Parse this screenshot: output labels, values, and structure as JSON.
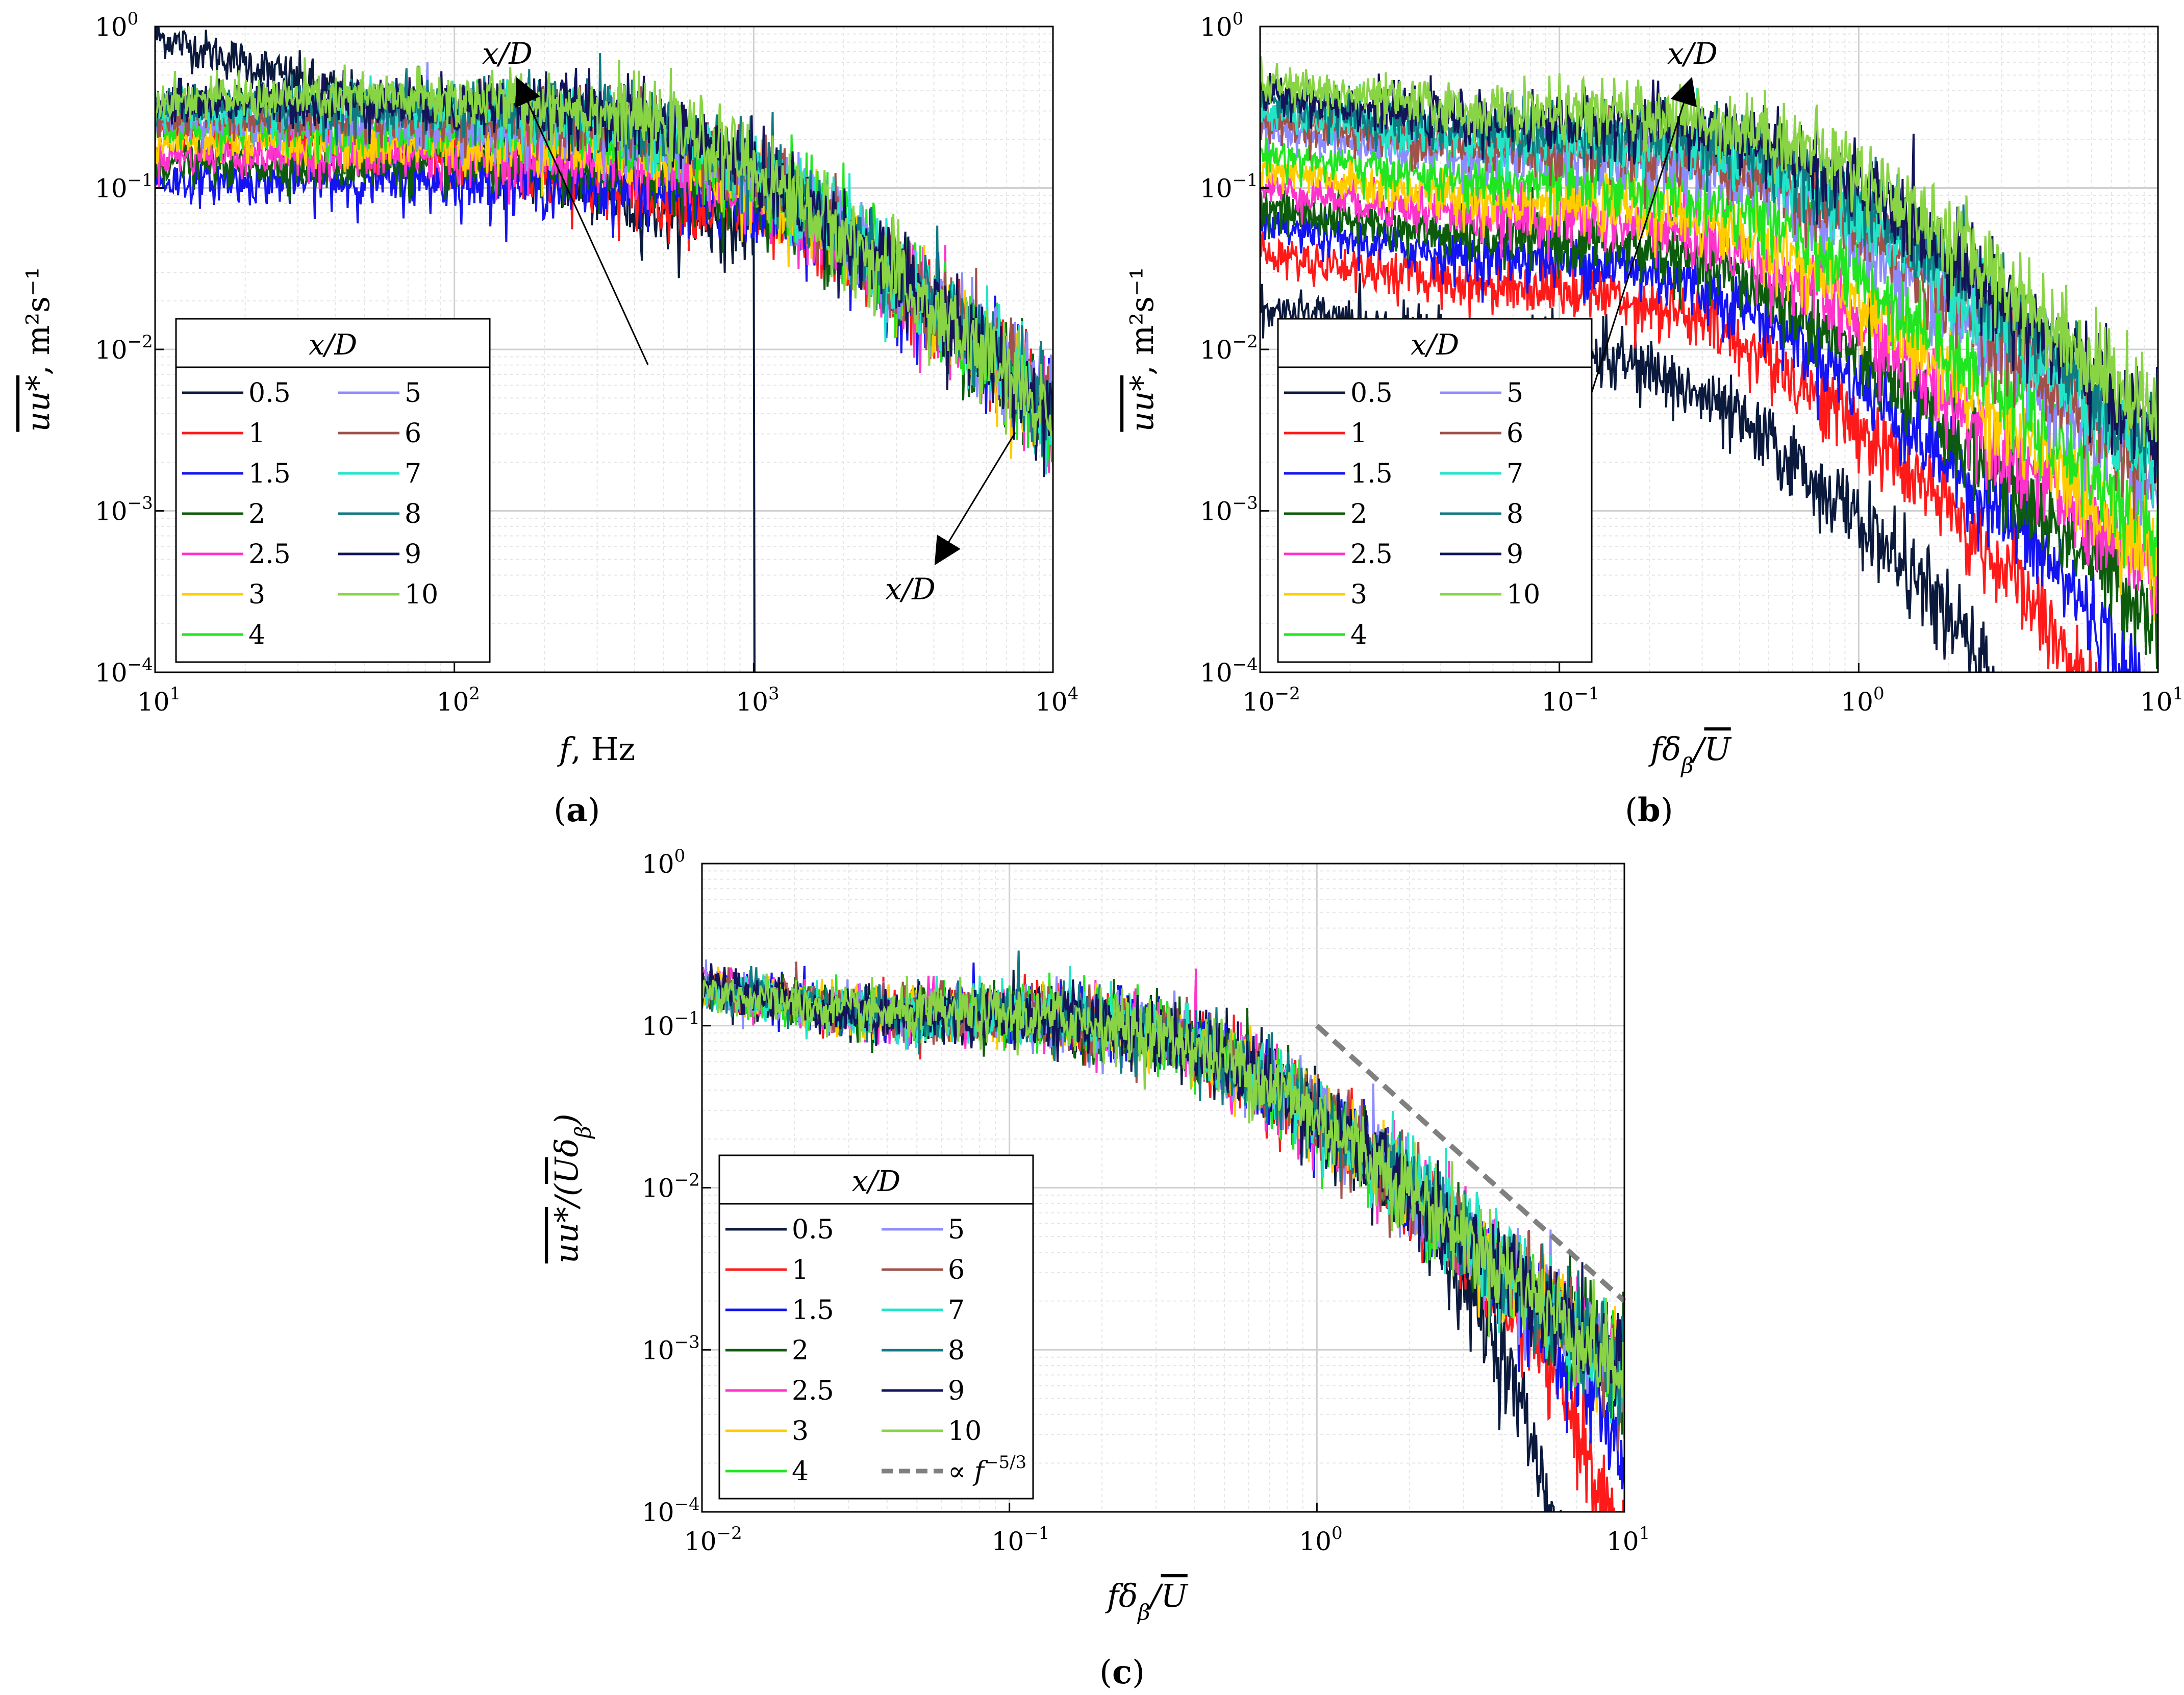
{
  "legend_title": "x/D",
  "series": [
    {
      "name": "0.5",
      "color": "#0b1a3c"
    },
    {
      "name": "1",
      "color": "#ff1a1a"
    },
    {
      "name": "1.5",
      "color": "#1414f0"
    },
    {
      "name": "2",
      "color": "#0d5c0d"
    },
    {
      "name": "2.5",
      "color": "#ff33cc"
    },
    {
      "name": "3",
      "color": "#ffcc00"
    },
    {
      "name": "4",
      "color": "#22e522"
    },
    {
      "name": "5",
      "color": "#8c8cff"
    },
    {
      "name": "6",
      "color": "#a0524a"
    },
    {
      "name": "7",
      "color": "#22e5c8"
    },
    {
      "name": "8",
      "color": "#0f7a82"
    },
    {
      "name": "9",
      "color": "#14145a"
    },
    {
      "name": "10",
      "color": "#88d444"
    }
  ],
  "reference_line": {
    "label_prefix": "∝ ",
    "label_var": "f",
    "label_exp": "−5/3",
    "color": "#808080"
  },
  "chart_data": [
    {
      "id": "a",
      "type": "line",
      "panel_label": "a",
      "xlabel_var": "f",
      "xlabel_unit": ", Hz",
      "ylabel_main": "uu*",
      "ylabel_unit": ", m²s⁻¹",
      "xlim_exp": [
        1,
        4
      ],
      "ylim_exp": [
        -4,
        0
      ],
      "x_scale": "log",
      "y_scale": "log",
      "grid": true,
      "legend_location": "lower-left",
      "annotations": [
        "x/D",
        "x/D"
      ],
      "curve_model": "peaky: plateau then decay slope -1.7 above cutoff frequency that shifts with x/D"
    },
    {
      "id": "b",
      "type": "line",
      "panel_label": "b",
      "xlabel": "fδβ/U",
      "ylabel_main": "uu*",
      "ylabel_unit": ", m²s⁻¹",
      "xlim_exp": [
        -2,
        1
      ],
      "ylim_exp": [
        -4,
        0
      ],
      "x_scale": "log",
      "y_scale": "log",
      "grid": true,
      "legend_location": "lower-left",
      "annotations": [
        "x/D"
      ]
    },
    {
      "id": "c",
      "type": "line",
      "panel_label": "c",
      "xlabel": "fδβ/U",
      "ylabel": "uu*/(Uδβ)",
      "xlim_exp": [
        -2,
        1
      ],
      "ylim_exp": [
        -4,
        0
      ],
      "x_scale": "log",
      "y_scale": "log",
      "grid": true,
      "legend_location": "lower-left",
      "reference": {
        "x": [
          1,
          10
        ],
        "y": [
          0.1,
          0.002
        ],
        "style": "dashed"
      }
    }
  ],
  "panel_a_levels": [
    0.07,
    0.09,
    0.11,
    0.14,
    0.16,
    0.19,
    0.23,
    0.25,
    0.28,
    0.3,
    0.32,
    0.34,
    0.36
  ],
  "panel_a_cutoff_hz": [
    2000,
    1600,
    1300,
    1150,
    1050,
    950,
    900,
    850,
    800,
    760,
    720,
    680,
    640
  ],
  "panel_b_levels": [
    0.012,
    0.026,
    0.038,
    0.05,
    0.068,
    0.085,
    0.11,
    0.16,
    0.18,
    0.2,
    0.23,
    0.26,
    0.3
  ],
  "panel_b_cutoff": [
    0.22,
    0.3,
    0.35,
    0.38,
    0.42,
    0.45,
    0.5,
    0.55,
    0.58,
    0.62,
    0.65,
    0.68,
    0.72
  ],
  "tick_labels": {
    "a_x": [
      "10",
      "10",
      "10",
      "10"
    ],
    "a_x_exp": [
      "1",
      "2",
      "3",
      "4"
    ],
    "bc_x": [
      "10",
      "10",
      "10",
      "10"
    ],
    "bc_x_exp": [
      "−2",
      "−1",
      "0",
      "1"
    ],
    "y": [
      "10",
      "10",
      "10",
      "10",
      "10"
    ],
    "y_exp": [
      "0",
      "−1",
      "−2",
      "−3",
      "−4"
    ]
  }
}
